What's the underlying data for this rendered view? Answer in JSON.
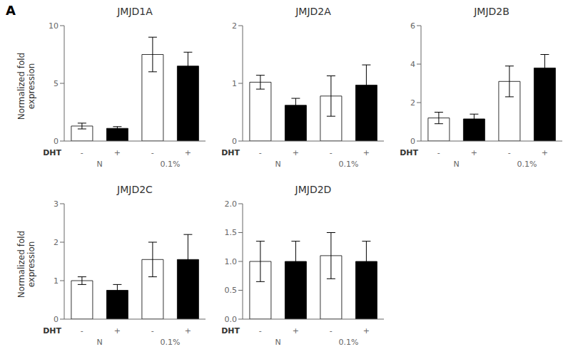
{
  "chart_data": [
    {
      "type": "bar",
      "title": "JMJD1A",
      "ylabel": "Normalized fold\nexpression",
      "xlabel": "DHT",
      "categories": [
        "-",
        "+",
        "-",
        "+"
      ],
      "group_labels": [
        "N",
        "0.1%"
      ],
      "values": [
        1.3,
        1.1,
        7.5,
        6.5
      ],
      "errors": [
        0.25,
        0.15,
        1.5,
        1.2
      ],
      "colors": [
        "white",
        "black",
        "white",
        "black"
      ],
      "ylim": [
        0,
        10
      ],
      "yticks": [
        0,
        5,
        10
      ],
      "grid": false,
      "annotations": [
        "A"
      ]
    },
    {
      "type": "bar",
      "title": "JMJD2A",
      "xlabel": "DHT",
      "categories": [
        "-",
        "+",
        "-",
        "+"
      ],
      "group_labels": [
        "N",
        "0.1%"
      ],
      "values": [
        1.02,
        0.62,
        0.78,
        0.97
      ],
      "errors": [
        0.12,
        0.12,
        0.35,
        0.35
      ],
      "colors": [
        "white",
        "black",
        "white",
        "black"
      ],
      "ylim": [
        0,
        2
      ],
      "yticks": [
        0,
        1,
        2
      ],
      "grid": false
    },
    {
      "type": "bar",
      "title": "JMJD2B",
      "xlabel": "DHT",
      "categories": [
        "-",
        "+",
        "-",
        "+"
      ],
      "group_labels": [
        "N",
        "0.1%"
      ],
      "values": [
        1.2,
        1.15,
        3.1,
        3.8
      ],
      "errors": [
        0.3,
        0.25,
        0.8,
        0.7
      ],
      "colors": [
        "white",
        "black",
        "white",
        "black"
      ],
      "ylim": [
        0,
        6
      ],
      "yticks": [
        0,
        2,
        4,
        6
      ],
      "grid": false
    },
    {
      "type": "bar",
      "title": "JMJD2C",
      "ylabel": "Normalized fold\nexpression",
      "xlabel": "DHT",
      "categories": [
        "-",
        "+",
        "-",
        "+"
      ],
      "group_labels": [
        "N",
        "0.1%"
      ],
      "values": [
        1.0,
        0.75,
        1.55,
        1.55
      ],
      "errors": [
        0.1,
        0.15,
        0.45,
        0.65
      ],
      "colors": [
        "white",
        "black",
        "white",
        "black"
      ],
      "ylim": [
        0,
        3
      ],
      "yticks": [
        0,
        1,
        2,
        3
      ],
      "grid": false
    },
    {
      "type": "bar",
      "title": "JMJD2D",
      "xlabel": "DHT",
      "categories": [
        "-",
        "+",
        "-",
        "+"
      ],
      "group_labels": [
        "N",
        "0.1%"
      ],
      "values": [
        1.0,
        1.0,
        1.1,
        1.0
      ],
      "errors": [
        0.35,
        0.35,
        0.4,
        0.35
      ],
      "colors": [
        "white",
        "black",
        "white",
        "black"
      ],
      "ylim": [
        0,
        2
      ],
      "yticks": [
        {
          "value": 0,
          "label": "0.0"
        },
        0.5,
        {
          "value": 1,
          "label": "1.0"
        },
        1.5,
        {
          "value": 2,
          "label": "2.0"
        }
      ],
      "grid": false
    }
  ]
}
